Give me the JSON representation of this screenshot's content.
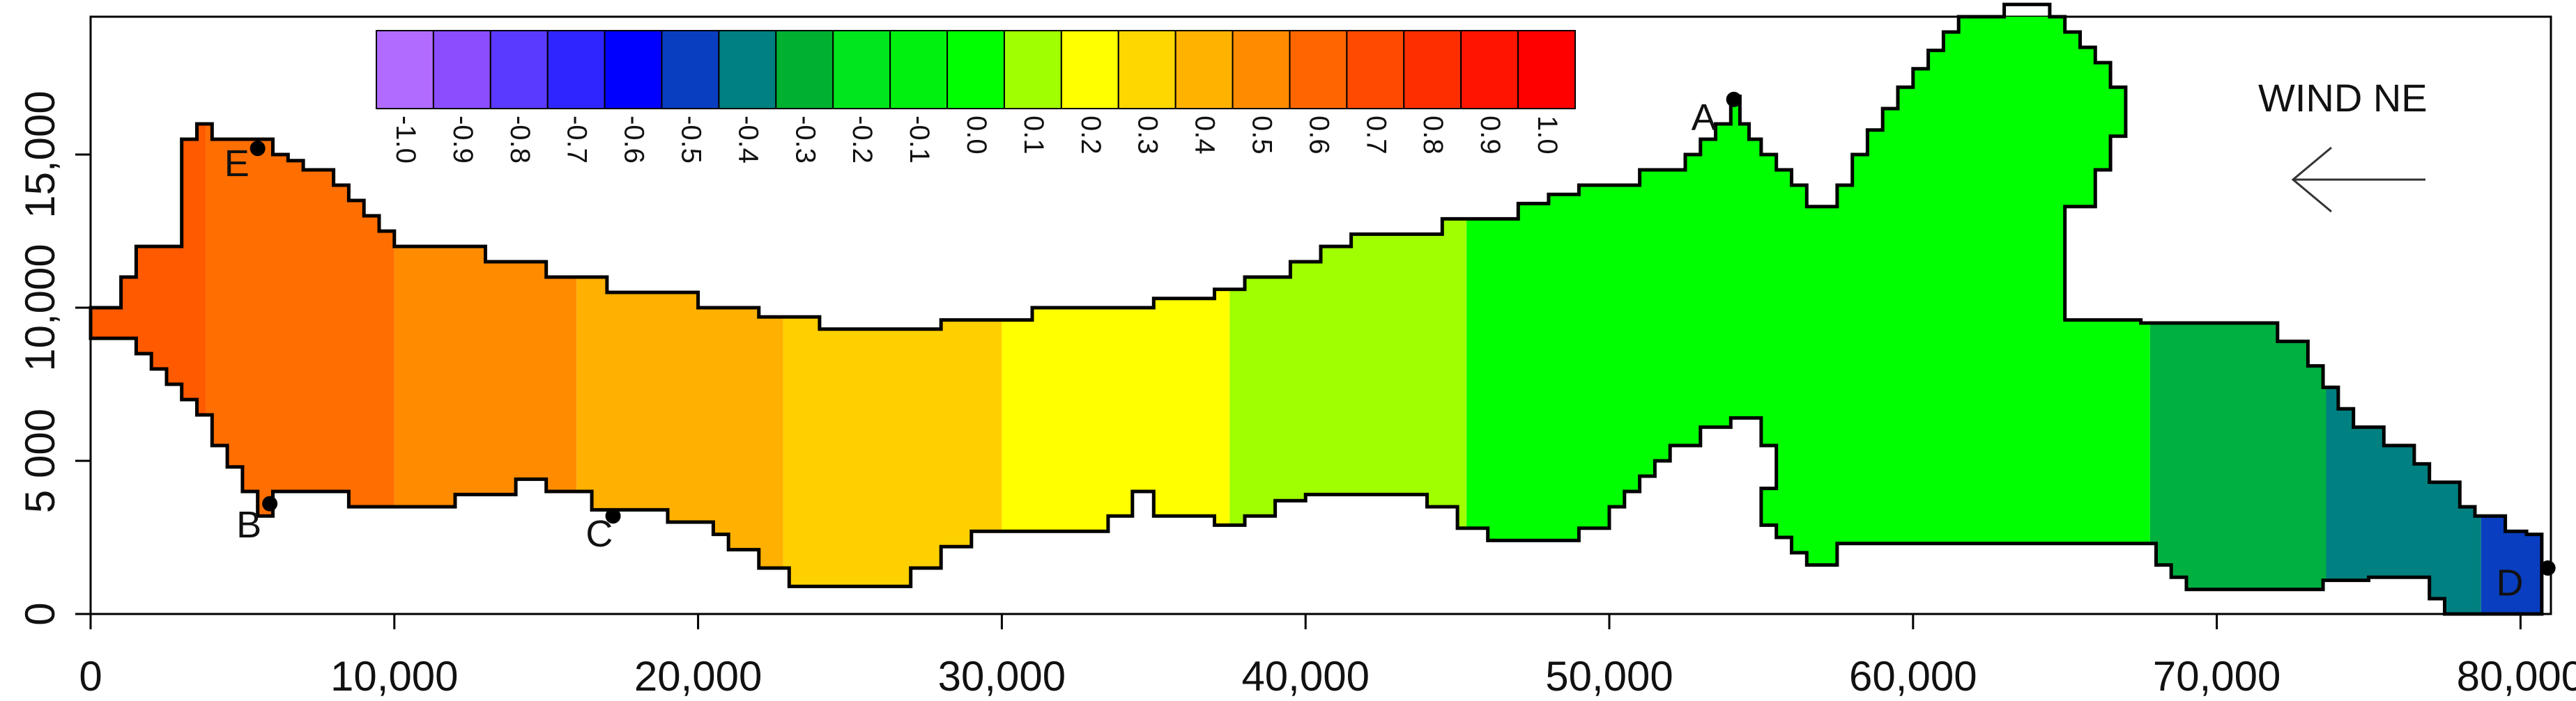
{
  "chart_data": {
    "type": "heatmap",
    "x_ticks": [
      0,
      10000,
      20000,
      30000,
      40000,
      50000,
      60000,
      70000,
      80000
    ],
    "x_tick_labels": [
      "0",
      "10,000",
      "20,000",
      "30,000",
      "40,000",
      "50,000",
      "60,000",
      "70,000",
      "80,000"
    ],
    "y_ticks": [
      0,
      5000,
      10000,
      15000
    ],
    "y_tick_labels": [
      "0",
      "5 000",
      "10,000",
      "15,000"
    ],
    "xlim": [
      0,
      81000
    ],
    "ylim": [
      0,
      19500
    ],
    "colorbar": {
      "levels": [
        -1.0,
        -0.9,
        -0.8,
        -0.7,
        -0.6,
        -0.5,
        -0.4,
        -0.3,
        -0.2,
        -0.1,
        0.0,
        0.1,
        0.2,
        0.3,
        0.4,
        0.5,
        0.6,
        0.7,
        0.8,
        0.9,
        1.0
      ],
      "labels": [
        "-1.0",
        "-0.9",
        "-0.8",
        "-0.7",
        "-0.6",
        "-0.5",
        "-0.4",
        "-0.3",
        "-0.2",
        "-0.1",
        "0.0",
        "0.1",
        "0.2",
        "0.3",
        "0.4",
        "0.5",
        "0.6",
        "0.7",
        "0.8",
        "0.9",
        "1.0"
      ],
      "colors": [
        "#b26bff",
        "#8c4dff",
        "#5b3aff",
        "#2f26ff",
        "#0000ff",
        "#0a3ec0",
        "#008080",
        "#00b030",
        "#00e61e",
        "#00f010",
        "#00ff00",
        "#a0ff00",
        "#ffff00",
        "#ffd700",
        "#ffb300",
        "#ff8c00",
        "#ff6600",
        "#ff4a00",
        "#ff2e00",
        "#ff1400",
        "#ff0000"
      ]
    },
    "zones": [
      {
        "x_range": [
          0,
          3800
        ],
        "value": 0.8,
        "color": "#ff5a00"
      },
      {
        "x_range": [
          3800,
          10000
        ],
        "value": 0.7,
        "color": "#ff6e00"
      },
      {
        "x_range": [
          10000,
          16000
        ],
        "value": 0.6,
        "color": "#ff8c00"
      },
      {
        "x_range": [
          16000,
          22800
        ],
        "value": 0.5,
        "color": "#ffb000"
      },
      {
        "x_range": [
          22800,
          30000
        ],
        "value": 0.4,
        "color": "#ffd000"
      },
      {
        "x_range": [
          30000,
          37500
        ],
        "value": 0.3,
        "color": "#ffff00"
      },
      {
        "x_range": [
          37500,
          45300
        ],
        "value": 0.2,
        "color": "#a0ff00"
      },
      {
        "x_range": [
          45300,
          67800
        ],
        "value": 0.0,
        "color": "#00ff00"
      },
      {
        "x_range": [
          67800,
          73600
        ],
        "value": -0.2,
        "color": "#00b040"
      },
      {
        "x_range": [
          73600,
          78700
        ],
        "value": -0.3,
        "color": "#008080"
      },
      {
        "x_range": [
          78700,
          81000
        ],
        "value": -0.5,
        "color": "#0a3ec0"
      }
    ],
    "boundary": [
      [
        0,
        10000
      ],
      [
        1000,
        10000
      ],
      [
        1000,
        11000
      ],
      [
        1500,
        11000
      ],
      [
        1500,
        12000
      ],
      [
        3000,
        12000
      ],
      [
        3000,
        14000
      ],
      [
        3000,
        15500
      ],
      [
        3500,
        15500
      ],
      [
        3500,
        16000
      ],
      [
        4000,
        16000
      ],
      [
        4000,
        15500
      ],
      [
        6000,
        15500
      ],
      [
        6000,
        15000
      ],
      [
        6500,
        15000
      ],
      [
        6500,
        14800
      ],
      [
        7000,
        14800
      ],
      [
        7000,
        14500
      ],
      [
        8000,
        14500
      ],
      [
        8000,
        14000
      ],
      [
        8500,
        14000
      ],
      [
        8500,
        13500
      ],
      [
        9000,
        13500
      ],
      [
        9000,
        13000
      ],
      [
        9500,
        13000
      ],
      [
        9500,
        12500
      ],
      [
        10000,
        12500
      ],
      [
        10000,
        12000
      ],
      [
        13000,
        12000
      ],
      [
        13000,
        11500
      ],
      [
        15000,
        11500
      ],
      [
        15000,
        11000
      ],
      [
        17000,
        11000
      ],
      [
        17000,
        10500
      ],
      [
        20000,
        10500
      ],
      [
        20000,
        10000
      ],
      [
        22000,
        10000
      ],
      [
        22000,
        9700
      ],
      [
        24000,
        9700
      ],
      [
        24000,
        9300
      ],
      [
        28000,
        9300
      ],
      [
        28000,
        9600
      ],
      [
        31000,
        9600
      ],
      [
        31000,
        10000
      ],
      [
        35000,
        10000
      ],
      [
        35000,
        10300
      ],
      [
        37000,
        10300
      ],
      [
        37000,
        10600
      ],
      [
        38000,
        10600
      ],
      [
        38000,
        11000
      ],
      [
        39500,
        11000
      ],
      [
        39500,
        11500
      ],
      [
        40500,
        11500
      ],
      [
        40500,
        12000
      ],
      [
        41500,
        12000
      ],
      [
        41500,
        12400
      ],
      [
        44500,
        12400
      ],
      [
        44500,
        12900
      ],
      [
        47000,
        12900
      ],
      [
        47000,
        13400
      ],
      [
        48000,
        13400
      ],
      [
        48000,
        13700
      ],
      [
        49000,
        13700
      ],
      [
        49000,
        14000
      ],
      [
        51000,
        14000
      ],
      [
        51000,
        14500
      ],
      [
        52500,
        14500
      ],
      [
        52500,
        15000
      ],
      [
        53000,
        15000
      ],
      [
        53000,
        15500
      ],
      [
        53500,
        15500
      ],
      [
        53500,
        16000
      ],
      [
        54000,
        16000
      ],
      [
        54000,
        16900
      ],
      [
        54300,
        16900
      ],
      [
        54300,
        16000
      ],
      [
        54600,
        16000
      ],
      [
        54600,
        15500
      ],
      [
        55000,
        15500
      ],
      [
        55000,
        15000
      ],
      [
        55500,
        15000
      ],
      [
        55500,
        14500
      ],
      [
        56000,
        14500
      ],
      [
        56000,
        14000
      ],
      [
        56500,
        14000
      ],
      [
        56500,
        13300
      ],
      [
        57500,
        13300
      ],
      [
        57500,
        14000
      ],
      [
        58000,
        14000
      ],
      [
        58000,
        15000
      ],
      [
        58500,
        15000
      ],
      [
        58500,
        15800
      ],
      [
        59000,
        15800
      ],
      [
        59000,
        16500
      ],
      [
        59500,
        16500
      ],
      [
        59500,
        17200
      ],
      [
        60000,
        17200
      ],
      [
        60000,
        17800
      ],
      [
        60500,
        17800
      ],
      [
        60500,
        18400
      ],
      [
        61000,
        18400
      ],
      [
        61000,
        19000
      ],
      [
        61500,
        19000
      ],
      [
        61500,
        19500
      ],
      [
        63000,
        19500
      ],
      [
        63000,
        19900
      ],
      [
        64500,
        19900
      ],
      [
        64500,
        19500
      ],
      [
        65000,
        19500
      ],
      [
        65000,
        19000
      ],
      [
        65500,
        19000
      ],
      [
        65500,
        18500
      ],
      [
        66000,
        18500
      ],
      [
        66000,
        18000
      ],
      [
        66500,
        18000
      ],
      [
        66500,
        17200
      ],
      [
        67000,
        17200
      ],
      [
        67000,
        15600
      ],
      [
        66500,
        15600
      ],
      [
        66500,
        14500
      ],
      [
        66000,
        14500
      ],
      [
        66000,
        13300
      ],
      [
        65000,
        13300
      ],
      [
        65000,
        9600
      ],
      [
        67500,
        9600
      ],
      [
        67500,
        9500
      ],
      [
        72000,
        9500
      ],
      [
        72000,
        8900
      ],
      [
        73000,
        8900
      ],
      [
        73000,
        8100
      ],
      [
        73500,
        8100
      ],
      [
        73500,
        7400
      ],
      [
        74000,
        7400
      ],
      [
        74000,
        6700
      ],
      [
        74500,
        6700
      ],
      [
        74500,
        6100
      ],
      [
        75500,
        6100
      ],
      [
        75500,
        5500
      ],
      [
        76500,
        5500
      ],
      [
        76500,
        4900
      ],
      [
        77000,
        4900
      ],
      [
        77000,
        4300
      ],
      [
        78000,
        4300
      ],
      [
        78000,
        3500
      ],
      [
        78500,
        3500
      ],
      [
        78500,
        3200
      ],
      [
        79500,
        3200
      ],
      [
        79500,
        2700
      ],
      [
        80200,
        2700
      ],
      [
        80200,
        2600
      ],
      [
        80700,
        2600
      ],
      [
        80700,
        0
      ],
      [
        77500,
        0
      ],
      [
        77500,
        500
      ],
      [
        77000,
        500
      ],
      [
        77000,
        1200
      ],
      [
        75000,
        1200
      ],
      [
        75000,
        1100
      ],
      [
        73500,
        1100
      ],
      [
        73500,
        800
      ],
      [
        69000,
        800
      ],
      [
        69000,
        1200
      ],
      [
        68500,
        1200
      ],
      [
        68500,
        1600
      ],
      [
        68000,
        1600
      ],
      [
        68000,
        2300
      ],
      [
        57500,
        2300
      ],
      [
        57500,
        1600
      ],
      [
        56500,
        1600
      ],
      [
        56500,
        2000
      ],
      [
        56000,
        2000
      ],
      [
        56000,
        2500
      ],
      [
        55500,
        2500
      ],
      [
        55500,
        2900
      ],
      [
        55000,
        2900
      ],
      [
        55000,
        4100
      ],
      [
        55500,
        4100
      ],
      [
        55500,
        5500
      ],
      [
        55000,
        5500
      ],
      [
        55000,
        6400
      ],
      [
        54000,
        6400
      ],
      [
        54000,
        6100
      ],
      [
        53000,
        6100
      ],
      [
        53000,
        5500
      ],
      [
        52000,
        5500
      ],
      [
        52000,
        5000
      ],
      [
        51500,
        5000
      ],
      [
        51500,
        4500
      ],
      [
        51000,
        4500
      ],
      [
        51000,
        4000
      ],
      [
        50500,
        4000
      ],
      [
        50500,
        3500
      ],
      [
        50000,
        3500
      ],
      [
        50000,
        2800
      ],
      [
        49000,
        2800
      ],
      [
        49000,
        2400
      ],
      [
        46000,
        2400
      ],
      [
        46000,
        2800
      ],
      [
        45000,
        2800
      ],
      [
        45000,
        3500
      ],
      [
        44000,
        3500
      ],
      [
        44000,
        3900
      ],
      [
        40000,
        3900
      ],
      [
        40000,
        3700
      ],
      [
        39000,
        3700
      ],
      [
        39000,
        3200
      ],
      [
        38000,
        3200
      ],
      [
        38000,
        2900
      ],
      [
        37000,
        2900
      ],
      [
        37000,
        3200
      ],
      [
        35000,
        3200
      ],
      [
        35000,
        4000
      ],
      [
        34300,
        4000
      ],
      [
        34300,
        3200
      ],
      [
        33500,
        3200
      ],
      [
        33500,
        2700
      ],
      [
        29000,
        2700
      ],
      [
        29000,
        2200
      ],
      [
        28000,
        2200
      ],
      [
        28000,
        1500
      ],
      [
        27000,
        1500
      ],
      [
        27000,
        900
      ],
      [
        23000,
        900
      ],
      [
        23000,
        1500
      ],
      [
        22000,
        1500
      ],
      [
        22000,
        2100
      ],
      [
        21000,
        2100
      ],
      [
        21000,
        2600
      ],
      [
        20500,
        2600
      ],
      [
        20500,
        3000
      ],
      [
        19000,
        3000
      ],
      [
        19000,
        3400
      ],
      [
        16500,
        3400
      ],
      [
        16500,
        4000
      ],
      [
        15000,
        4000
      ],
      [
        15000,
        4400
      ],
      [
        14000,
        4400
      ],
      [
        14000,
        3900
      ],
      [
        12000,
        3900
      ],
      [
        12000,
        3500
      ],
      [
        8500,
        3500
      ],
      [
        8500,
        4000
      ],
      [
        6000,
        4000
      ],
      [
        6000,
        3200
      ],
      [
        5500,
        3200
      ],
      [
        5500,
        4000
      ],
      [
        5000,
        4000
      ],
      [
        5000,
        4800
      ],
      [
        4500,
        4800
      ],
      [
        4500,
        5500
      ],
      [
        4000,
        5500
      ],
      [
        4000,
        6500
      ],
      [
        3500,
        6500
      ],
      [
        3500,
        7000
      ],
      [
        3000,
        7000
      ],
      [
        3000,
        7500
      ],
      [
        2500,
        7500
      ],
      [
        2500,
        8000
      ],
      [
        2000,
        8000
      ],
      [
        2000,
        8500
      ],
      [
        1500,
        8500
      ],
      [
        1500,
        9000
      ],
      [
        0,
        9000
      ]
    ],
    "points": [
      {
        "label": "A",
        "x": 54100,
        "y": 16800,
        "label_x": 52700,
        "label_y": 15800
      },
      {
        "label": "B",
        "x": 5900,
        "y": 3600,
        "label_x": 4800,
        "label_y": 2500
      },
      {
        "label": "C",
        "x": 17200,
        "y": 3200,
        "label_x": 16300,
        "label_y": 2200
      },
      {
        "label": "D",
        "x": 80900,
        "y": 1500,
        "label_x": 79200,
        "label_y": 600
      },
      {
        "label": "E",
        "x": 5500,
        "y": 15200,
        "label_x": 4400,
        "label_y": 14300
      }
    ],
    "annotation": {
      "text": "WIND NE",
      "arrow_direction": "left"
    }
  }
}
